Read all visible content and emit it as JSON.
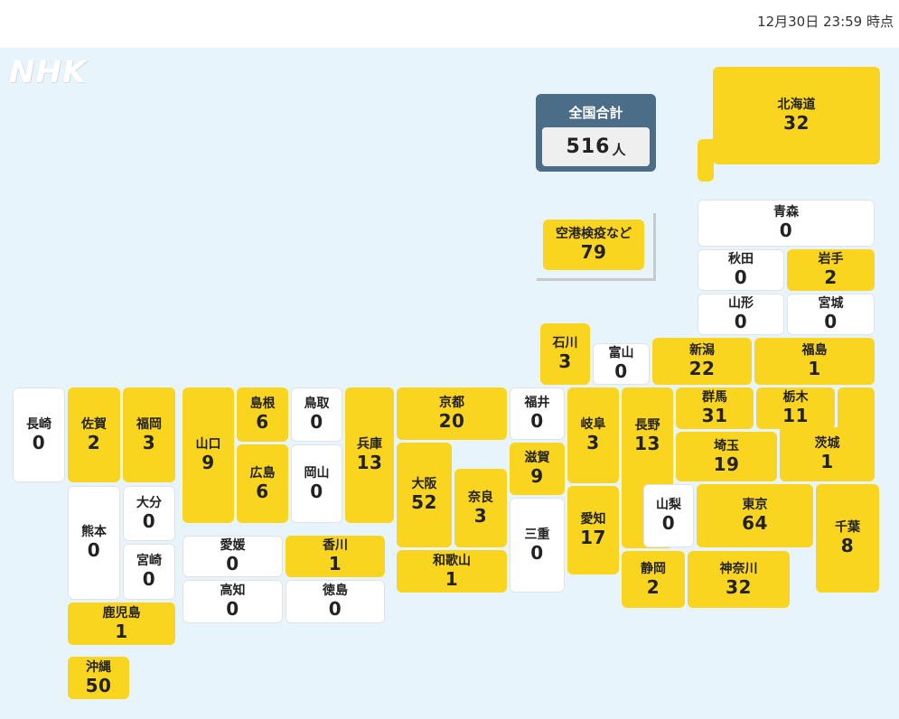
{
  "timestamp": "12月30日 23:59 時点",
  "logo": "NHK",
  "total": {
    "label": "全国合計",
    "value": "516",
    "unit": "人"
  },
  "colors": {
    "active": "#fad51f",
    "zero": "#ffffff",
    "total_bg": "#4b6d88",
    "map_bg": "#e8f4fb"
  },
  "prefectures": {
    "hokkaido": {
      "name": "北海道",
      "count": "32"
    },
    "aomori": {
      "name": "青森",
      "count": "0"
    },
    "akita": {
      "name": "秋田",
      "count": "0"
    },
    "iwate": {
      "name": "岩手",
      "count": "2"
    },
    "yamagata": {
      "name": "山形",
      "count": "0"
    },
    "miyagi": {
      "name": "宮城",
      "count": "0"
    },
    "ishikawa": {
      "name": "石川",
      "count": "3"
    },
    "toyama": {
      "name": "富山",
      "count": "0"
    },
    "niigata": {
      "name": "新潟",
      "count": "22"
    },
    "fukushima": {
      "name": "福島",
      "count": "1"
    },
    "nagasaki": {
      "name": "長崎",
      "count": "0"
    },
    "saga": {
      "name": "佐賀",
      "count": "2"
    },
    "fukuoka": {
      "name": "福岡",
      "count": "3"
    },
    "yamaguchi": {
      "name": "山口",
      "count": "9"
    },
    "shimane": {
      "name": "島根",
      "count": "6"
    },
    "tottori": {
      "name": "鳥取",
      "count": "0"
    },
    "hyogo": {
      "name": "兵庫",
      "count": "13"
    },
    "kyoto": {
      "name": "京都",
      "count": "20"
    },
    "fukui": {
      "name": "福井",
      "count": "0"
    },
    "gifu": {
      "name": "岐阜",
      "count": "3"
    },
    "nagano": {
      "name": "長野",
      "count": "13"
    },
    "gunma": {
      "name": "群馬",
      "count": "31"
    },
    "tochigi": {
      "name": "栃木",
      "count": "11"
    },
    "hiroshima": {
      "name": "広島",
      "count": "6"
    },
    "okayama": {
      "name": "岡山",
      "count": "0"
    },
    "osaka": {
      "name": "大阪",
      "count": "52"
    },
    "nara": {
      "name": "奈良",
      "count": "3"
    },
    "shiga": {
      "name": "滋賀",
      "count": "9"
    },
    "saitama": {
      "name": "埼玉",
      "count": "19"
    },
    "ibaraki": {
      "name": "茨城",
      "count": "1"
    },
    "kumamoto": {
      "name": "熊本",
      "count": "0"
    },
    "oita": {
      "name": "大分",
      "count": "0"
    },
    "miyazaki": {
      "name": "宮崎",
      "count": "0"
    },
    "mie": {
      "name": "三重",
      "count": "0"
    },
    "aichi": {
      "name": "愛知",
      "count": "17"
    },
    "yamanashi": {
      "name": "山梨",
      "count": "0"
    },
    "tokyo": {
      "name": "東京",
      "count": "64"
    },
    "chiba": {
      "name": "千葉",
      "count": "8"
    },
    "ehime": {
      "name": "愛媛",
      "count": "0"
    },
    "kagawa": {
      "name": "香川",
      "count": "1"
    },
    "wakayama": {
      "name": "和歌山",
      "count": "1"
    },
    "kochi": {
      "name": "高知",
      "count": "0"
    },
    "tokushima": {
      "name": "徳島",
      "count": "0"
    },
    "shizuoka": {
      "name": "静岡",
      "count": "2"
    },
    "kanagawa": {
      "name": "神奈川",
      "count": "32"
    },
    "kagoshima": {
      "name": "鹿児島",
      "count": "1"
    },
    "okinawa": {
      "name": "沖縄",
      "count": "50"
    },
    "airport": {
      "name": "空港検疫など",
      "count": "79"
    }
  }
}
